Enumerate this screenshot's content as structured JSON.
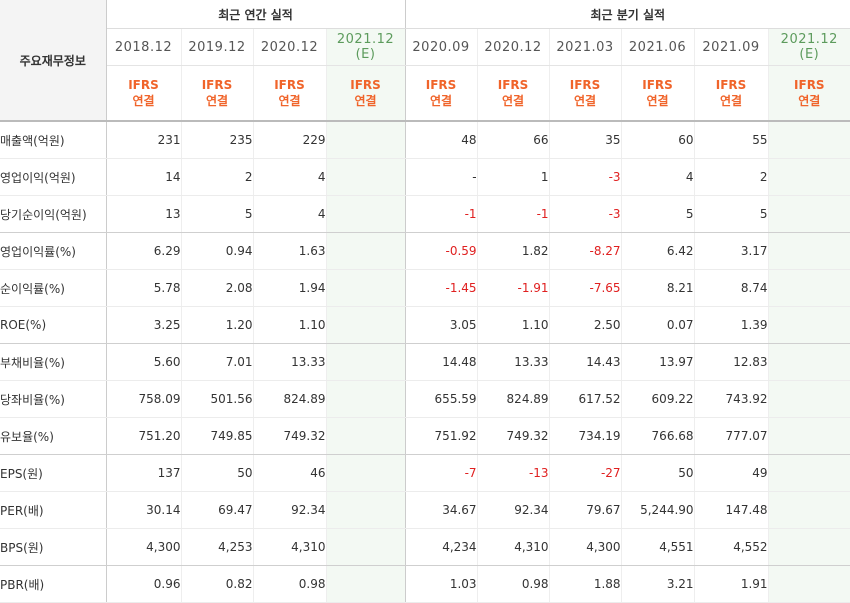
{
  "header": {
    "label_title": "주요재무정보",
    "annual_title": "최근 연간 실적",
    "quarterly_title": "최근 분기 실적",
    "ifrs_line1": "IFRS",
    "ifrs_line2": "연결"
  },
  "annual_periods": [
    {
      "period": "2018.12",
      "estimate": ""
    },
    {
      "period": "2019.12",
      "estimate": ""
    },
    {
      "period": "2020.12",
      "estimate": ""
    },
    {
      "period": "2021.12",
      "estimate": "(E)"
    }
  ],
  "quarterly_periods": [
    {
      "period": "2020.09",
      "estimate": ""
    },
    {
      "period": "2020.12",
      "estimate": ""
    },
    {
      "period": "2021.03",
      "estimate": ""
    },
    {
      "period": "2021.06",
      "estimate": ""
    },
    {
      "period": "2021.09",
      "estimate": ""
    },
    {
      "period": "2021.12",
      "estimate": "(E)"
    }
  ],
  "rows": [
    {
      "label": "매출액(억원)",
      "values": [
        "231",
        "235",
        "229",
        "",
        "48",
        "66",
        "35",
        "60",
        "55",
        ""
      ]
    },
    {
      "label": "영업이익(억원)",
      "values": [
        "14",
        "2",
        "4",
        "",
        "-",
        "1",
        "-3",
        "4",
        "2",
        ""
      ]
    },
    {
      "label": "당기순이익(억원)",
      "values": [
        "13",
        "5",
        "4",
        "",
        "-1",
        "-1",
        "-3",
        "5",
        "5",
        ""
      ]
    },
    {
      "label": "영업이익률(%)",
      "values": [
        "6.29",
        "0.94",
        "1.63",
        "",
        "-0.59",
        "1.82",
        "-8.27",
        "6.42",
        "3.17",
        ""
      ]
    },
    {
      "label": "순이익률(%)",
      "values": [
        "5.78",
        "2.08",
        "1.94",
        "",
        "-1.45",
        "-1.91",
        "-7.65",
        "8.21",
        "8.74",
        ""
      ]
    },
    {
      "label": "ROE(%)",
      "values": [
        "3.25",
        "1.20",
        "1.10",
        "",
        "3.05",
        "1.10",
        "2.50",
        "0.07",
        "1.39",
        ""
      ]
    },
    {
      "label": "부채비율(%)",
      "values": [
        "5.60",
        "7.01",
        "13.33",
        "",
        "14.48",
        "13.33",
        "14.43",
        "13.97",
        "12.83",
        ""
      ]
    },
    {
      "label": "당좌비율(%)",
      "values": [
        "758.09",
        "501.56",
        "824.89",
        "",
        "655.59",
        "824.89",
        "617.52",
        "609.22",
        "743.92",
        ""
      ]
    },
    {
      "label": "유보율(%)",
      "values": [
        "751.20",
        "749.85",
        "749.32",
        "",
        "751.92",
        "749.32",
        "734.19",
        "766.68",
        "777.07",
        ""
      ]
    },
    {
      "label": "EPS(원)",
      "values": [
        "137",
        "50",
        "46",
        "",
        "-7",
        "-13",
        "-27",
        "50",
        "49",
        ""
      ]
    },
    {
      "label": "PER(배)",
      "values": [
        "30.14",
        "69.47",
        "92.34",
        "",
        "34.67",
        "92.34",
        "79.67",
        "5,244.90",
        "147.48",
        ""
      ]
    },
    {
      "label": "BPS(원)",
      "values": [
        "4,300",
        "4,253",
        "4,310",
        "",
        "4,234",
        "4,310",
        "4,300",
        "4,551",
        "4,552",
        ""
      ]
    },
    {
      "label": "PBR(배)",
      "values": [
        "0.96",
        "0.82",
        "0.98",
        "",
        "1.03",
        "0.98",
        "1.88",
        "3.21",
        "1.91",
        ""
      ]
    }
  ],
  "colors": {
    "ifrs": "#f0642a",
    "negative": "#e02020",
    "estimate_bg": "#f3f9f3",
    "estimate_text": "#5c9b5c"
  }
}
